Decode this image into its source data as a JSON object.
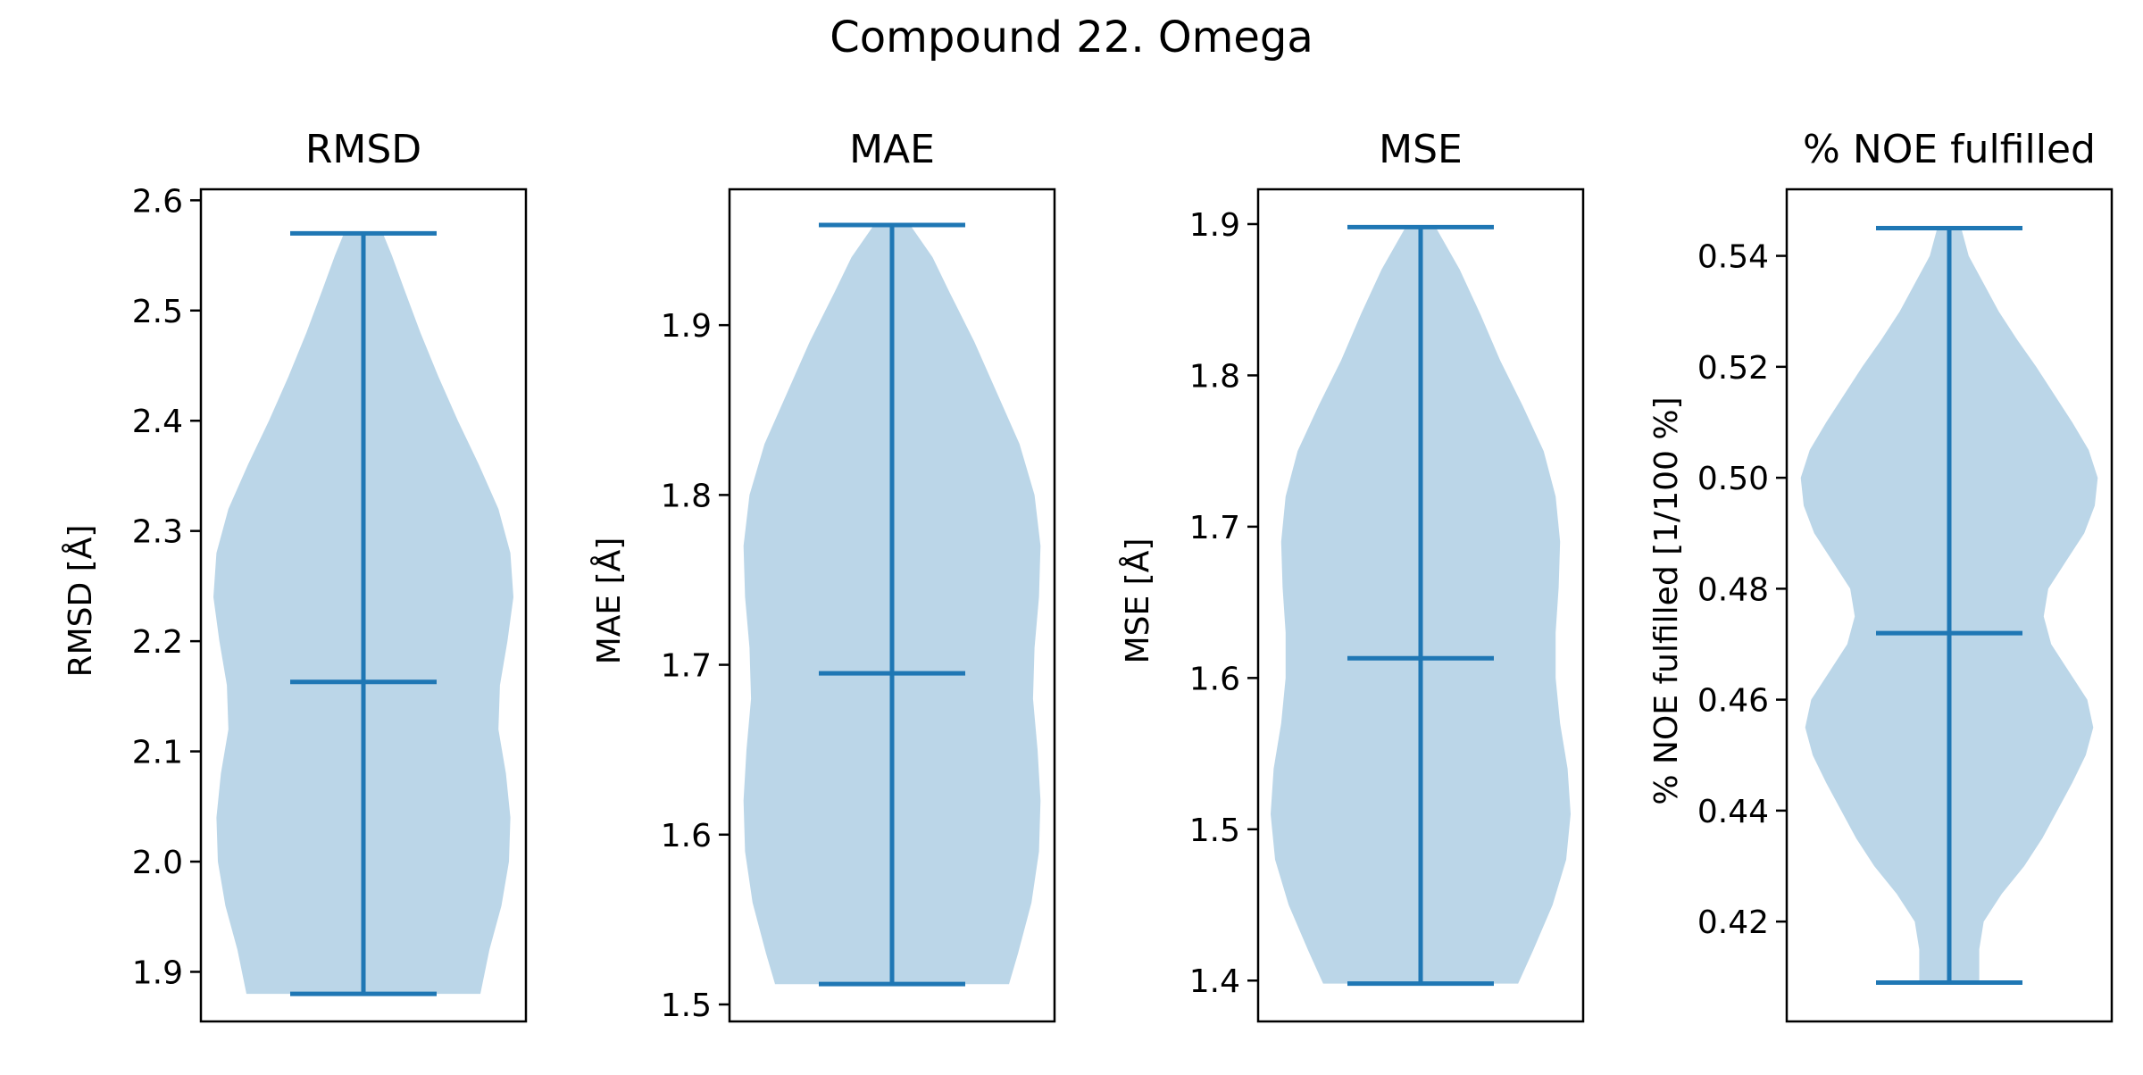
{
  "figure": {
    "title": "Compound 22. Omega"
  },
  "style": {
    "violin_fill": "#1f77b4",
    "violin_fill_opacity": 0.3,
    "line_color": "#1f77b4",
    "axes_color": "#000000"
  },
  "chart_data": [
    {
      "type": "violin",
      "title": "RMSD",
      "xlabel": "",
      "ylabel": "RMSD [Å]",
      "ylim": [
        1.855,
        2.61
      ],
      "yticks": [
        1.9,
        2.0,
        2.1,
        2.2,
        2.3,
        2.4,
        2.5,
        2.6
      ],
      "ytick_labels": [
        "1.9",
        "2.0",
        "2.1",
        "2.2",
        "2.3",
        "2.4",
        "2.5",
        "2.6"
      ],
      "min": 1.88,
      "max": 2.57,
      "mean": 2.163,
      "density": [
        [
          1.88,
          0.78
        ],
        [
          1.92,
          0.84
        ],
        [
          1.96,
          0.92
        ],
        [
          2.0,
          0.97
        ],
        [
          2.04,
          0.98
        ],
        [
          2.08,
          0.95
        ],
        [
          2.12,
          0.9
        ],
        [
          2.16,
          0.91
        ],
        [
          2.2,
          0.96
        ],
        [
          2.24,
          1.0
        ],
        [
          2.28,
          0.98
        ],
        [
          2.32,
          0.9
        ],
        [
          2.36,
          0.77
        ],
        [
          2.4,
          0.63
        ],
        [
          2.44,
          0.5
        ],
        [
          2.48,
          0.38
        ],
        [
          2.52,
          0.27
        ],
        [
          2.55,
          0.19
        ],
        [
          2.57,
          0.13
        ]
      ]
    },
    {
      "type": "violin",
      "title": "MAE",
      "xlabel": "",
      "ylabel": "MAE [Å]",
      "ylim": [
        1.49,
        1.98
      ],
      "yticks": [
        1.5,
        1.6,
        1.7,
        1.8,
        1.9
      ],
      "ytick_labels": [
        "1.5",
        "1.6",
        "1.7",
        "1.8",
        "1.9"
      ],
      "min": 1.512,
      "max": 1.959,
      "mean": 1.695,
      "density": [
        [
          1.512,
          0.78
        ],
        [
          1.53,
          0.84
        ],
        [
          1.56,
          0.93
        ],
        [
          1.59,
          0.98
        ],
        [
          1.62,
          0.99
        ],
        [
          1.65,
          0.97
        ],
        [
          1.68,
          0.94
        ],
        [
          1.71,
          0.95
        ],
        [
          1.74,
          0.98
        ],
        [
          1.77,
          0.99
        ],
        [
          1.8,
          0.95
        ],
        [
          1.83,
          0.85
        ],
        [
          1.86,
          0.7
        ],
        [
          1.89,
          0.55
        ],
        [
          1.92,
          0.38
        ],
        [
          1.94,
          0.27
        ],
        [
          1.959,
          0.12
        ]
      ]
    },
    {
      "type": "violin",
      "title": "MSE",
      "xlabel": "",
      "ylabel": "MSE [Å]",
      "ylim": [
        1.373,
        1.923
      ],
      "yticks": [
        1.4,
        1.5,
        1.6,
        1.7,
        1.8,
        1.9
      ],
      "ytick_labels": [
        "1.4",
        "1.5",
        "1.6",
        "1.7",
        "1.8",
        "1.9"
      ],
      "min": 1.398,
      "max": 1.898,
      "mean": 1.613,
      "density": [
        [
          1.398,
          0.65
        ],
        [
          1.42,
          0.75
        ],
        [
          1.45,
          0.88
        ],
        [
          1.48,
          0.97
        ],
        [
          1.51,
          1.0
        ],
        [
          1.54,
          0.98
        ],
        [
          1.57,
          0.93
        ],
        [
          1.6,
          0.9
        ],
        [
          1.63,
          0.9
        ],
        [
          1.66,
          0.92
        ],
        [
          1.69,
          0.93
        ],
        [
          1.72,
          0.9
        ],
        [
          1.75,
          0.82
        ],
        [
          1.78,
          0.68
        ],
        [
          1.81,
          0.53
        ],
        [
          1.84,
          0.4
        ],
        [
          1.87,
          0.26
        ],
        [
          1.898,
          0.1
        ]
      ]
    },
    {
      "type": "violin",
      "title": "% NOE fulfilled",
      "xlabel": "",
      "ylabel": "% NOE fulfilled [1/100 %]",
      "ylim": [
        0.402,
        0.552
      ],
      "yticks": [
        0.42,
        0.44,
        0.46,
        0.48,
        0.5,
        0.52,
        0.54
      ],
      "ytick_labels": [
        "0.42",
        "0.44",
        "0.46",
        "0.48",
        "0.50",
        "0.52",
        "0.54"
      ],
      "min": 0.409,
      "max": 0.545,
      "mean": 0.472,
      "density": [
        [
          0.409,
          0.2
        ],
        [
          0.415,
          0.2
        ],
        [
          0.42,
          0.23
        ],
        [
          0.425,
          0.35
        ],
        [
          0.43,
          0.5
        ],
        [
          0.435,
          0.62
        ],
        [
          0.44,
          0.72
        ],
        [
          0.445,
          0.82
        ],
        [
          0.45,
          0.91
        ],
        [
          0.455,
          0.96
        ],
        [
          0.46,
          0.92
        ],
        [
          0.465,
          0.8
        ],
        [
          0.47,
          0.68
        ],
        [
          0.475,
          0.63
        ],
        [
          0.48,
          0.66
        ],
        [
          0.485,
          0.78
        ],
        [
          0.49,
          0.9
        ],
        [
          0.495,
          0.97
        ],
        [
          0.5,
          0.99
        ],
        [
          0.505,
          0.93
        ],
        [
          0.51,
          0.82
        ],
        [
          0.515,
          0.7
        ],
        [
          0.52,
          0.58
        ],
        [
          0.525,
          0.45
        ],
        [
          0.53,
          0.33
        ],
        [
          0.535,
          0.23
        ],
        [
          0.54,
          0.13
        ],
        [
          0.545,
          0.08
        ]
      ]
    }
  ]
}
